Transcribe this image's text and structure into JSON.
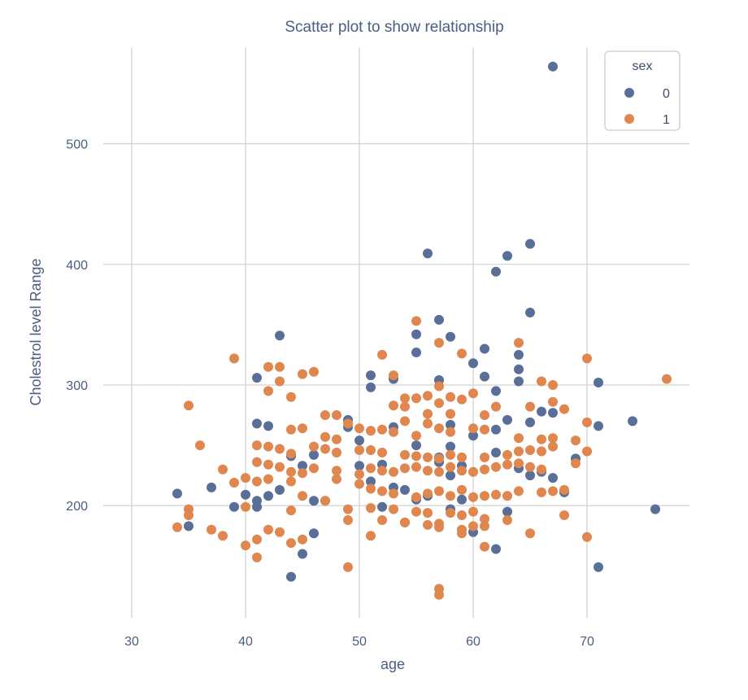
{
  "chart_data": {
    "type": "scatter",
    "title": "Scatter plot to show relationship",
    "xlabel": "age",
    "ylabel": "Cholestrol level Range",
    "xlim": [
      27.5,
      79
    ],
    "ylim": [
      107,
      580
    ],
    "xticks": [
      30,
      40,
      50,
      60,
      70
    ],
    "yticks": [
      200,
      300,
      400,
      500
    ],
    "grid": true,
    "legend": {
      "title": "sex",
      "placement": "top-right"
    },
    "series": [
      {
        "name": "0",
        "color": "#5a6f98",
        "points": [
          [
            67,
            564
          ],
          [
            56,
            409
          ],
          [
            63,
            407
          ],
          [
            65,
            417
          ],
          [
            62,
            394
          ],
          [
            65,
            360
          ],
          [
            57,
            354
          ],
          [
            55,
            342
          ],
          [
            58,
            340
          ],
          [
            43,
            341
          ],
          [
            61,
            330
          ],
          [
            55,
            327
          ],
          [
            64,
            325
          ],
          [
            60,
            318
          ],
          [
            64,
            313
          ],
          [
            51,
            308
          ],
          [
            41,
            306
          ],
          [
            53,
            305
          ],
          [
            61,
            307
          ],
          [
            57,
            304
          ],
          [
            64,
            303
          ],
          [
            71,
            302
          ],
          [
            51,
            298
          ],
          [
            62,
            295
          ],
          [
            67,
            277
          ],
          [
            63,
            271
          ],
          [
            66,
            278
          ],
          [
            74,
            270
          ],
          [
            65,
            269
          ],
          [
            41,
            268
          ],
          [
            42,
            266
          ],
          [
            49,
            271
          ],
          [
            53,
            265
          ],
          [
            58,
            267
          ],
          [
            71,
            266
          ],
          [
            49,
            265
          ],
          [
            62,
            263
          ],
          [
            50,
            254
          ],
          [
            55,
            250
          ],
          [
            57,
            240
          ],
          [
            60,
            258
          ],
          [
            58,
            249
          ],
          [
            69,
            239
          ],
          [
            46,
            242
          ],
          [
            44,
            241
          ],
          [
            52,
            234
          ],
          [
            57,
            236
          ],
          [
            59,
            233
          ],
          [
            45,
            233
          ],
          [
            50,
            233
          ],
          [
            62,
            244
          ],
          [
            64,
            231
          ],
          [
            65,
            225
          ],
          [
            66,
            228
          ],
          [
            67,
            223
          ],
          [
            58,
            225
          ],
          [
            51,
            220
          ],
          [
            43,
            213
          ],
          [
            53,
            215
          ],
          [
            54,
            213
          ],
          [
            56,
            208
          ],
          [
            59,
            205
          ],
          [
            37,
            215
          ],
          [
            40,
            209
          ],
          [
            34,
            210
          ],
          [
            42,
            208
          ],
          [
            46,
            204
          ],
          [
            41,
            204
          ],
          [
            47,
            204
          ],
          [
            55,
            205
          ],
          [
            58,
            197
          ],
          [
            68,
            211
          ],
          [
            52,
            199
          ],
          [
            63,
            195
          ],
          [
            39,
            199
          ],
          [
            41,
            199
          ],
          [
            76,
            197
          ],
          [
            35,
            183
          ],
          [
            46,
            177
          ],
          [
            60,
            178
          ],
          [
            62,
            164
          ],
          [
            45,
            160
          ],
          [
            44,
            141
          ],
          [
            71,
            149
          ]
        ]
      },
      {
        "name": "1",
        "color": "#e0874f",
        "points": [
          [
            55,
            353
          ],
          [
            64,
            335
          ],
          [
            57,
            335
          ],
          [
            52,
            325
          ],
          [
            59,
            326
          ],
          [
            39,
            322
          ],
          [
            42,
            315
          ],
          [
            43,
            315
          ],
          [
            46,
            311
          ],
          [
            45,
            309
          ],
          [
            53,
            308
          ],
          [
            70,
            322
          ],
          [
            43,
            303
          ],
          [
            66,
            303
          ],
          [
            67,
            300
          ],
          [
            42,
            295
          ],
          [
            57,
            299
          ],
          [
            55,
            289
          ],
          [
            56,
            291
          ],
          [
            44,
            290
          ],
          [
            35,
            283
          ],
          [
            54,
            289
          ],
          [
            58,
            290
          ],
          [
            59,
            288
          ],
          [
            60,
            293
          ],
          [
            62,
            282
          ],
          [
            65,
            282
          ],
          [
            67,
            286
          ],
          [
            68,
            280
          ],
          [
            48,
            275
          ],
          [
            47,
            275
          ],
          [
            56,
            276
          ],
          [
            53,
            283
          ],
          [
            54,
            282
          ],
          [
            57,
            285
          ],
          [
            58,
            276
          ],
          [
            61,
            275
          ],
          [
            54,
            270
          ],
          [
            49,
            268
          ],
          [
            50,
            264
          ],
          [
            52,
            263
          ],
          [
            44,
            263
          ],
          [
            45,
            264
          ],
          [
            47,
            257
          ],
          [
            48,
            255
          ],
          [
            51,
            262
          ],
          [
            53,
            261
          ],
          [
            55,
            258
          ],
          [
            57,
            264
          ],
          [
            58,
            261
          ],
          [
            56,
            268
          ],
          [
            60,
            264
          ],
          [
            61,
            263
          ],
          [
            64,
            256
          ],
          [
            66,
            255
          ],
          [
            67,
            256
          ],
          [
            70,
            269
          ],
          [
            77,
            305
          ],
          [
            36,
            250
          ],
          [
            41,
            250
          ],
          [
            42,
            249
          ],
          [
            43,
            247
          ],
          [
            44,
            243
          ],
          [
            46,
            249
          ],
          [
            47,
            247
          ],
          [
            48,
            244
          ],
          [
            50,
            246
          ],
          [
            51,
            246
          ],
          [
            52,
            244
          ],
          [
            54,
            242
          ],
          [
            55,
            241
          ],
          [
            56,
            240
          ],
          [
            57,
            239
          ],
          [
            58,
            242
          ],
          [
            59,
            240
          ],
          [
            61,
            240
          ],
          [
            63,
            242
          ],
          [
            64,
            245
          ],
          [
            65,
            246
          ],
          [
            66,
            245
          ],
          [
            67,
            249
          ],
          [
            69,
            254
          ],
          [
            70,
            245
          ],
          [
            41,
            236
          ],
          [
            42,
            234
          ],
          [
            43,
            232
          ],
          [
            44,
            228
          ],
          [
            45,
            227
          ],
          [
            46,
            231
          ],
          [
            48,
            229
          ],
          [
            50,
            226
          ],
          [
            51,
            231
          ],
          [
            52,
            229
          ],
          [
            53,
            228
          ],
          [
            54,
            231
          ],
          [
            55,
            232
          ],
          [
            56,
            229
          ],
          [
            57,
            228
          ],
          [
            58,
            232
          ],
          [
            59,
            229
          ],
          [
            60,
            228
          ],
          [
            61,
            230
          ],
          [
            62,
            232
          ],
          [
            63,
            234
          ],
          [
            64,
            235
          ],
          [
            65,
            232
          ],
          [
            66,
            230
          ],
          [
            69,
            235
          ],
          [
            38,
            230
          ],
          [
            40,
            223
          ],
          [
            41,
            220
          ],
          [
            42,
            222
          ],
          [
            44,
            220
          ],
          [
            48,
            222
          ],
          [
            50,
            218
          ],
          [
            51,
            214
          ],
          [
            52,
            212
          ],
          [
            53,
            210
          ],
          [
            55,
            207
          ],
          [
            56,
            210
          ],
          [
            57,
            212
          ],
          [
            58,
            208
          ],
          [
            59,
            213
          ],
          [
            60,
            207
          ],
          [
            61,
            208
          ],
          [
            62,
            209
          ],
          [
            63,
            208
          ],
          [
            64,
            212
          ],
          [
            66,
            211
          ],
          [
            67,
            212
          ],
          [
            68,
            213
          ],
          [
            39,
            219
          ],
          [
            45,
            208
          ],
          [
            47,
            204
          ],
          [
            40,
            199
          ],
          [
            35,
            197
          ],
          [
            35,
            192
          ],
          [
            44,
            196
          ],
          [
            49,
            197
          ],
          [
            51,
            198
          ],
          [
            53,
            197
          ],
          [
            55,
            195
          ],
          [
            56,
            194
          ],
          [
            58,
            194
          ],
          [
            59,
            192
          ],
          [
            60,
            195
          ],
          [
            61,
            189
          ],
          [
            63,
            188
          ],
          [
            68,
            192
          ],
          [
            52,
            188
          ],
          [
            54,
            186
          ],
          [
            57,
            185
          ],
          [
            56,
            184
          ],
          [
            60,
            183
          ],
          [
            57,
            182
          ],
          [
            59,
            180
          ],
          [
            61,
            183
          ],
          [
            59,
            177
          ],
          [
            34,
            182
          ],
          [
            37,
            180
          ],
          [
            38,
            175
          ],
          [
            40,
            167
          ],
          [
            41,
            172
          ],
          [
            42,
            180
          ],
          [
            43,
            178
          ],
          [
            44,
            169
          ],
          [
            45,
            172
          ],
          [
            49,
            188
          ],
          [
            51,
            175
          ],
          [
            54,
            186
          ],
          [
            61,
            166
          ],
          [
            65,
            177
          ],
          [
            70,
            174
          ],
          [
            41,
            157
          ],
          [
            49,
            149
          ],
          [
            57,
            131
          ],
          [
            57,
            126
          ]
        ]
      }
    ]
  }
}
